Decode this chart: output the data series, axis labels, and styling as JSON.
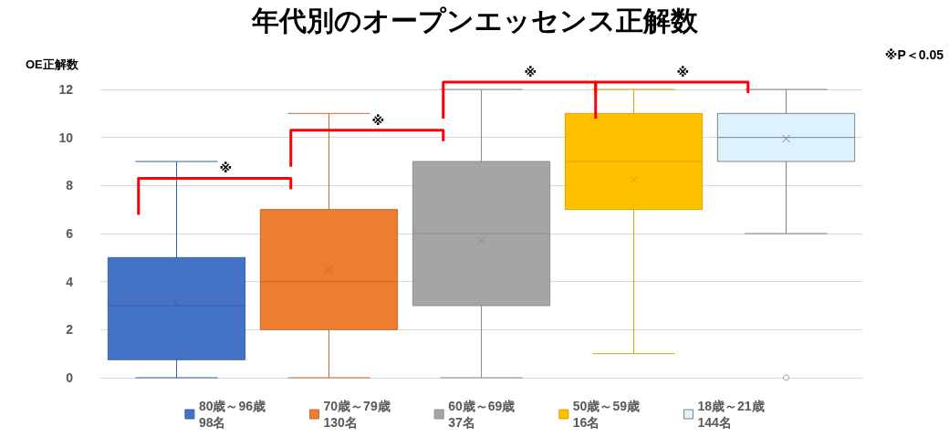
{
  "chart_data": {
    "type": "box",
    "title": "年代別のオープンエッセンス正解数",
    "ylabel": "OE正解数",
    "categories": [
      null,
      null,
      null,
      null,
      null
    ],
    "series": [
      {
        "name": "80歳～96歳\n98名",
        "color": "#4472c4",
        "boxes": [
          {
            "low": 0,
            "q1": 0.75,
            "median": 3,
            "q3": 5,
            "high": 9,
            "mean": 3.1
          },
          null,
          null,
          null,
          null
        ]
      },
      {
        "name": "70歳～79歳\n130名",
        "color": "#ed7d31",
        "boxes": [
          null,
          {
            "low": 0,
            "q1": 2,
            "median": 4,
            "q3": 7,
            "high": 11,
            "mean": 4.5
          },
          null,
          null,
          null
        ]
      },
      {
        "name": "60歳～69歳\n37名",
        "color": "#a5a5a5",
        "boxes": [
          null,
          null,
          {
            "low": 0,
            "q1": 3,
            "median": 6,
            "q3": 9,
            "high": 12,
            "mean": 5.7
          },
          null,
          null
        ]
      },
      {
        "name": "50歳～59歳\n16名",
        "color": "#ffc000",
        "boxes": [
          null,
          null,
          null,
          {
            "low": 1,
            "q1": 7,
            "median": 9,
            "q3": 11,
            "high": 12,
            "mean": 8.25
          },
          null
        ]
      },
      {
        "name": "18歳～21歳\n144名",
        "color": "#ddf2fc",
        "boxes": [
          null,
          null,
          null,
          null,
          {
            "low": 6,
            "q1": 9,
            "median": 10,
            "q3": 11,
            "high": 12,
            "mean": 9.95,
            "outliers": [
              0
            ]
          }
        ]
      }
    ],
    "ylim": [
      0,
      12
    ],
    "yticks": [
      0,
      2,
      4,
      6,
      8,
      10,
      12
    ],
    "grid": "y",
    "legend": "bottom",
    "annotations": [
      "※",
      "※",
      "※",
      "※",
      "※P＜0.05"
    ]
  }
}
